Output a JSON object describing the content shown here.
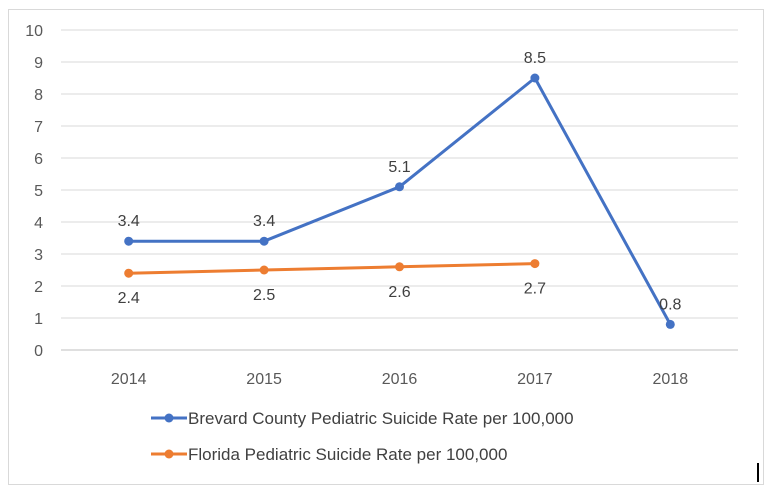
{
  "chart_data": {
    "type": "line",
    "categories": [
      "2014",
      "2015",
      "2016",
      "2017",
      "2018"
    ],
    "ylim": [
      0,
      10
    ],
    "y_ticks": [
      0,
      1,
      2,
      3,
      4,
      5,
      6,
      7,
      8,
      9,
      10
    ],
    "grid": true,
    "legend_position": "bottom",
    "series": [
      {
        "name": "Brevard County Pediatric Suicide Rate per 100,000",
        "color": "#4472C4",
        "values": [
          3.4,
          3.4,
          5.1,
          8.5,
          0.8
        ],
        "label_position": "above"
      },
      {
        "name": "Florida Pediatric Suicide Rate per 100,000",
        "color": "#ED7D31",
        "values": [
          2.4,
          2.5,
          2.6,
          2.7,
          null
        ],
        "label_position": "below"
      }
    ]
  }
}
